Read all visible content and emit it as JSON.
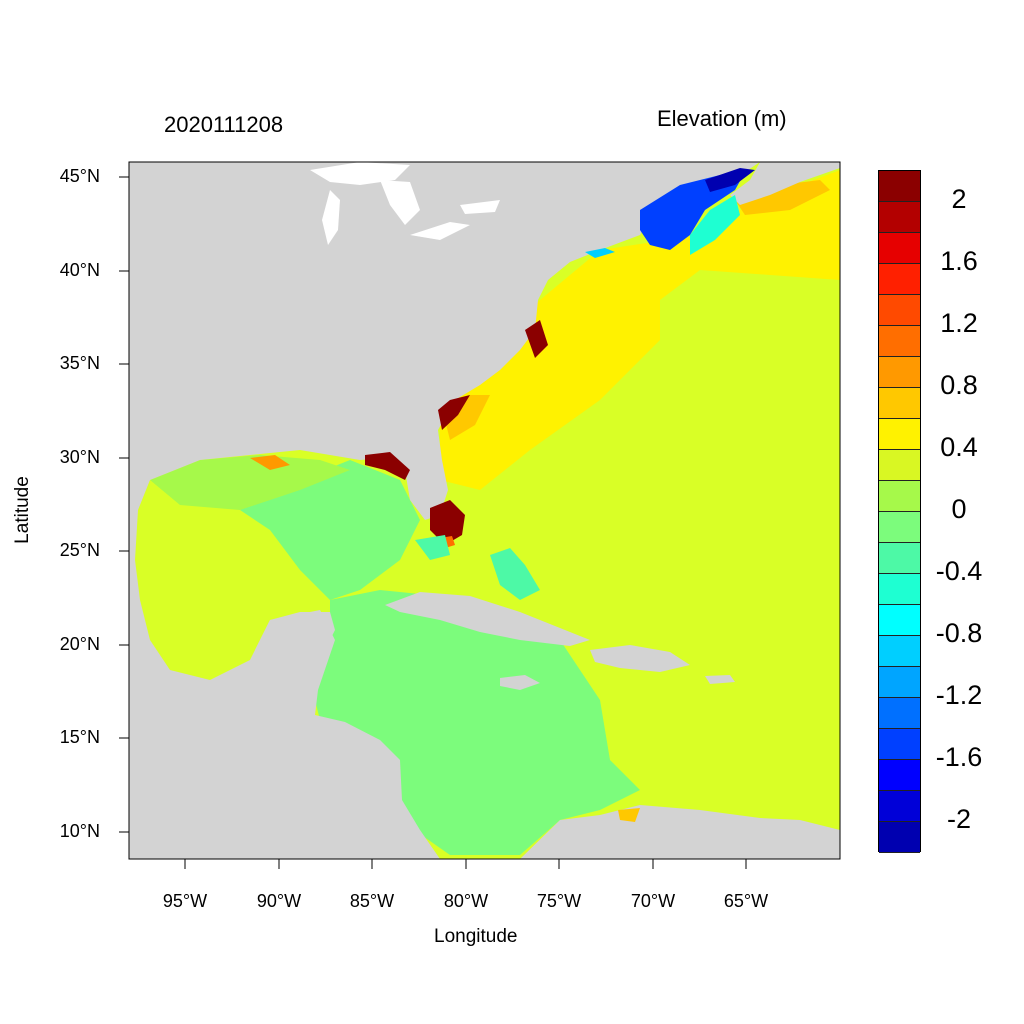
{
  "header": {
    "run_date": "2020111208",
    "variable": "Elevation (m)"
  },
  "axes": {
    "xlabel": "Longitude",
    "ylabel": "Latitude",
    "xticks": [
      "95°W",
      "90°W",
      "85°W",
      "80°W",
      "75°W",
      "70°W",
      "65°W"
    ],
    "yticks": [
      "45°N",
      "40°N",
      "35°N",
      "30°N",
      "25°N",
      "20°N",
      "15°N",
      "10°N"
    ],
    "lon_range": [
      -98,
      -60
    ],
    "lat_range": [
      8.5,
      46
    ]
  },
  "colorbar": {
    "labels": [
      "2",
      "1.6",
      "1.2",
      "0.8",
      "0.4",
      "0",
      "-0.4",
      "-0.8",
      "-1.2",
      "-1.6",
      "-2"
    ],
    "colors": [
      "#8b0000",
      "#b30000",
      "#e60000",
      "#ff2000",
      "#ff4a00",
      "#ff6e00",
      "#ff9900",
      "#ffc800",
      "#fff200",
      "#d9f723",
      "#a6f94a",
      "#7cfc7c",
      "#4df9a6",
      "#1effd2",
      "#00ffff",
      "#00cfff",
      "#00a5ff",
      "#0070ff",
      "#0040ff",
      "#0000ff",
      "#0000d8",
      "#0000b0"
    ]
  },
  "map_colors": {
    "land": "#d3d3d3",
    "water_outline": "#ffffff",
    "ocean_default": "#d9ff26"
  }
}
